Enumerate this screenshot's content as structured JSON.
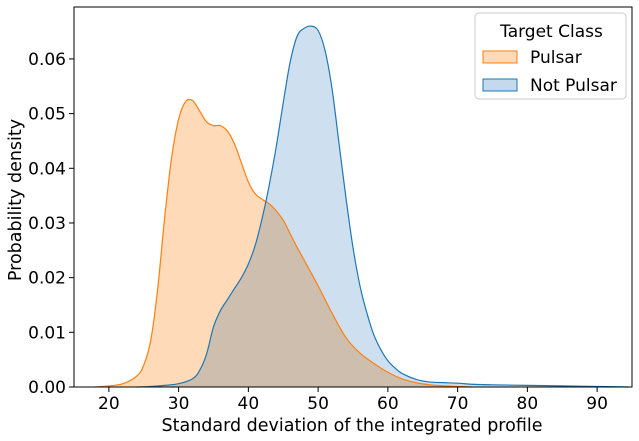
{
  "chart_data": {
    "type": "area",
    "xlabel": "Standard deviation of the integrated profile",
    "ylabel": "Probability density",
    "xlim": [
      15,
      95
    ],
    "ylim": [
      0,
      0.0695
    ],
    "xticks": [
      20,
      30,
      40,
      50,
      60,
      70,
      80,
      90
    ],
    "yticks": [
      0.0,
      0.01,
      0.02,
      0.03,
      0.04,
      0.05,
      0.06
    ],
    "ytick_labels": [
      "0.00",
      "0.01",
      "0.02",
      "0.03",
      "0.04",
      "0.05",
      "0.06"
    ],
    "grid": false,
    "legend": {
      "title": "Target Class",
      "placement": "top-right"
    },
    "series": [
      {
        "name": "Pulsar",
        "color": "#ff7f0e",
        "fill": "#ffdab9",
        "points": [
          [
            18,
            0
          ],
          [
            20,
            0.0002
          ],
          [
            22,
            0.0006
          ],
          [
            24,
            0.002
          ],
          [
            25,
            0.004
          ],
          [
            26,
            0.0085
          ],
          [
            27,
            0.018
          ],
          [
            28,
            0.031
          ],
          [
            29,
            0.042
          ],
          [
            30,
            0.049
          ],
          [
            31,
            0.0522
          ],
          [
            32,
            0.0524
          ],
          [
            33,
            0.0505
          ],
          [
            34,
            0.0485
          ],
          [
            35,
            0.0478
          ],
          [
            36,
            0.0478
          ],
          [
            37,
            0.0468
          ],
          [
            38,
            0.0445
          ],
          [
            39,
            0.041
          ],
          [
            40,
            0.0375
          ],
          [
            41,
            0.0353
          ],
          [
            42,
            0.0343
          ],
          [
            43,
            0.0335
          ],
          [
            44,
            0.0322
          ],
          [
            45,
            0.0305
          ],
          [
            46,
            0.028
          ],
          [
            47,
            0.0255
          ],
          [
            48,
            0.0232
          ],
          [
            50,
            0.0185
          ],
          [
            52,
            0.0135
          ],
          [
            54,
            0.009
          ],
          [
            56,
            0.0062
          ],
          [
            58,
            0.0043
          ],
          [
            60,
            0.0027
          ],
          [
            62,
            0.0015
          ],
          [
            64,
            0.0008
          ],
          [
            66,
            0.0004
          ],
          [
            68,
            0.0002
          ],
          [
            70,
            0.0001
          ],
          [
            72,
            0
          ]
        ]
      },
      {
        "name": "Not Pulsar",
        "color": "#1f77b4",
        "fill": "#c5d9ec",
        "points": [
          [
            24,
            0
          ],
          [
            26,
            0.0001
          ],
          [
            28,
            0.0003
          ],
          [
            30,
            0.0006
          ],
          [
            32,
            0.0015
          ],
          [
            33,
            0.003
          ],
          [
            34,
            0.006
          ],
          [
            35,
            0.011
          ],
          [
            36,
            0.014
          ],
          [
            37,
            0.016
          ],
          [
            38,
            0.018
          ],
          [
            39,
            0.02
          ],
          [
            40,
            0.0225
          ],
          [
            41,
            0.026
          ],
          [
            42,
            0.031
          ],
          [
            43,
            0.037
          ],
          [
            44,
            0.044
          ],
          [
            45,
            0.052
          ],
          [
            46,
            0.0595
          ],
          [
            47,
            0.0642
          ],
          [
            48,
            0.0656
          ],
          [
            49,
            0.066
          ],
          [
            50,
            0.0652
          ],
          [
            51,
            0.0615
          ],
          [
            52,
            0.0545
          ],
          [
            53,
            0.0445
          ],
          [
            54,
            0.0345
          ],
          [
            55,
            0.0255
          ],
          [
            56,
            0.0185
          ],
          [
            57,
            0.0135
          ],
          [
            58,
            0.0095
          ],
          [
            59,
            0.0068
          ],
          [
            60,
            0.0048
          ],
          [
            61,
            0.0035
          ],
          [
            62,
            0.0025
          ],
          [
            64,
            0.0014
          ],
          [
            66,
            0.0009
          ],
          [
            68,
            0.0008
          ],
          [
            70,
            0.0007
          ],
          [
            72,
            0.0005
          ],
          [
            75,
            0.0004
          ],
          [
            80,
            0.0003
          ],
          [
            85,
            0.0002
          ],
          [
            90,
            0.0001
          ],
          [
            94.5,
            0
          ]
        ]
      }
    ]
  }
}
